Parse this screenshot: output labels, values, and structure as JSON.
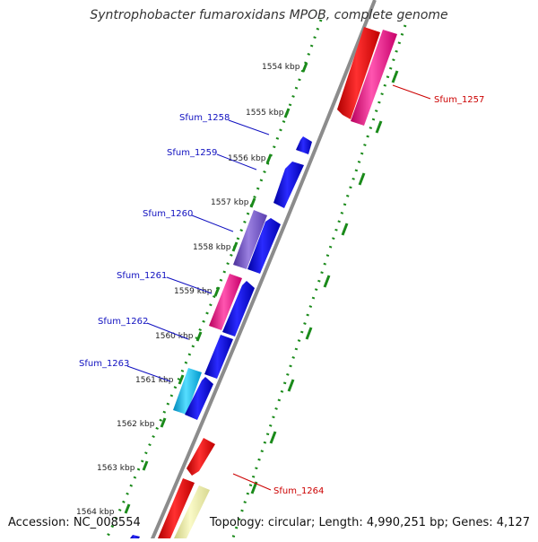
{
  "title": "Syntrophobacter fumaroxidans MPOB, complete genome",
  "footer": {
    "accession": "Accession: NC_008554",
    "topology": "Topology: circular; Length: 4,990,251 bp; Genes: 4,127"
  },
  "colors": {
    "backbone": "#8c8c8c",
    "track_dots": "#1a8a1a",
    "label_blue": "#1010c0",
    "label_red": "#cc0000",
    "gene_red": "#ff0000",
    "gene_pink": "#ff2299",
    "gene_blue": "#1010ee",
    "gene_purple": "#7755cc",
    "gene_cyan": "#11bbee",
    "gene_yellow": "#eeeea0"
  },
  "ticks": [
    {
      "label": "1554 kbp"
    },
    {
      "label": "1555 kbp"
    },
    {
      "label": "1556 kbp"
    },
    {
      "label": "1557 kbp"
    },
    {
      "label": "1558 kbp"
    },
    {
      "label": "1559 kbp"
    },
    {
      "label": "1560 kbp"
    },
    {
      "label": "1561 kbp"
    },
    {
      "label": "1562 kbp"
    },
    {
      "label": "1563 kbp"
    },
    {
      "label": "1564 kbp"
    }
  ],
  "gene_labels": [
    {
      "name": "Sfum_1257",
      "color": "label_red"
    },
    {
      "name": "Sfum_1258",
      "color": "label_blue"
    },
    {
      "name": "Sfum_1259",
      "color": "label_blue"
    },
    {
      "name": "Sfum_1260",
      "color": "label_blue"
    },
    {
      "name": "Sfum_1261",
      "color": "label_blue"
    },
    {
      "name": "Sfum_1262",
      "color": "label_blue"
    },
    {
      "name": "Sfum_1263",
      "color": "label_blue"
    },
    {
      "name": "Sfum_1264",
      "color": "label_red"
    }
  ]
}
